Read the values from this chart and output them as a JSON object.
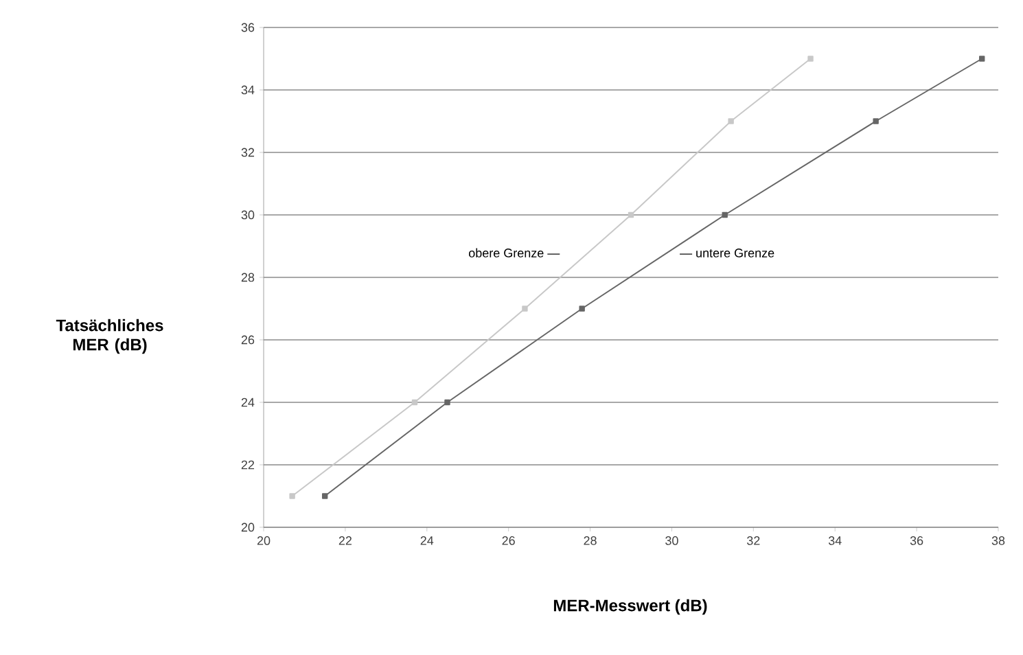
{
  "chart_data": {
    "type": "line",
    "xlabel": "MER-Messwert (dB)",
    "ylabel": "Tatsächliches MER (dB)",
    "xlim": [
      20,
      38
    ],
    "xticks": [
      20,
      22,
      24,
      26,
      28,
      30,
      32,
      34,
      36,
      38
    ],
    "ylim": [
      20,
      36
    ],
    "yticks": [
      20,
      22,
      24,
      26,
      28,
      30,
      32,
      34,
      36
    ],
    "grid": "y",
    "marker": "square",
    "line_style": "solid",
    "series": [
      {
        "name": "obere Grenze —",
        "color": "#c8c8c8",
        "x": [
          20.7,
          23.7,
          26.4,
          29.0,
          31.45,
          33.4
        ],
        "values": [
          21,
          24,
          27,
          30,
          33,
          35
        ]
      },
      {
        "name": "— untere Grenze",
        "color": "#666666",
        "x": [
          21.5,
          24.5,
          27.8,
          31.3,
          35.0,
          37.6
        ],
        "values": [
          21,
          24,
          27,
          30,
          33,
          35
        ]
      }
    ]
  }
}
